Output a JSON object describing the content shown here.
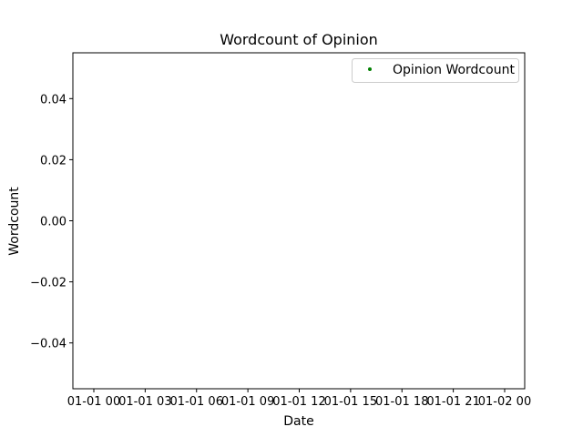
{
  "chart_data": {
    "type": "scatter",
    "title": "Wordcount of Opinion",
    "xlabel": "Date",
    "ylabel": "Wordcount",
    "x_ticks": [
      "01-01 00",
      "01-01 03",
      "01-01 06",
      "01-01 09",
      "01-01 12",
      "01-01 15",
      "01-01 18",
      "01-01 21",
      "01-02 00"
    ],
    "y_ticks": [
      "−0.04",
      "−0.02",
      "0.00",
      "0.02",
      "0.04"
    ],
    "y_tick_values": [
      -0.04,
      -0.02,
      0.0,
      0.02,
      0.04
    ],
    "ylim": [
      -0.055,
      0.055
    ],
    "series": [
      {
        "name": "Opinion Wordcount",
        "color": "#008000",
        "x": [],
        "y": []
      }
    ],
    "legend": {
      "position": "upper right"
    },
    "grid": false
  }
}
